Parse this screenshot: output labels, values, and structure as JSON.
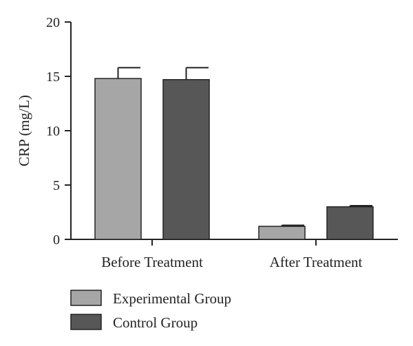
{
  "chart_data": {
    "type": "bar",
    "categories": [
      "Before Treatment",
      "After Treatment"
    ],
    "series": [
      {
        "name": "Experimental Group",
        "values": [
          14.8,
          1.2
        ],
        "errors": [
          1.0,
          0.1
        ],
        "color": "#a6a6a6"
      },
      {
        "name": "Control Group",
        "values": [
          14.7,
          3.0
        ],
        "errors": [
          1.1,
          0.1
        ],
        "color": "#575757"
      }
    ],
    "ylabel": "CRP (mg/L)",
    "xlabel": "",
    "ylim": [
      0,
      20
    ],
    "yticks": [
      0,
      5,
      10,
      15,
      20
    ],
    "legend_position": "bottom-left",
    "grid": false
  }
}
